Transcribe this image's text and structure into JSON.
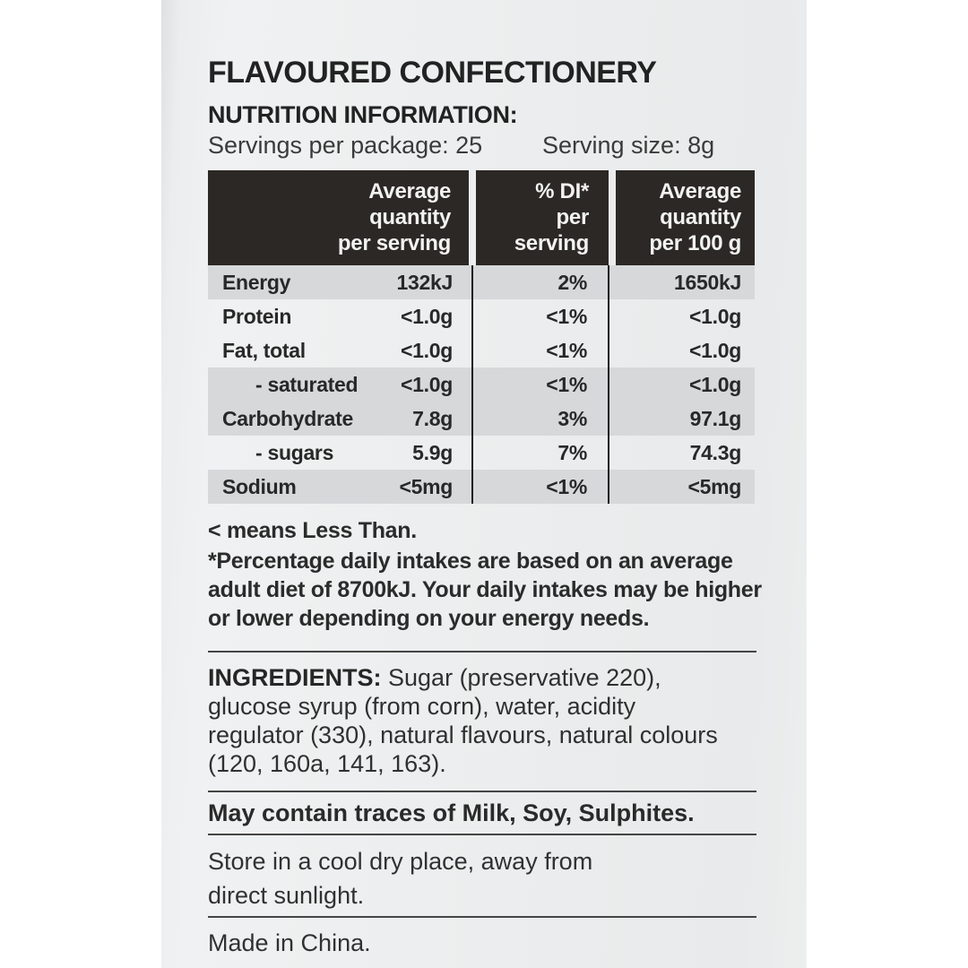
{
  "product": {
    "title": "FLAVOURED CONFECTIONERY"
  },
  "nutrition": {
    "heading": "NUTRITION INFORMATION:",
    "servings_per_package": "Servings per package: 25",
    "serving_size": "Serving size: 8g",
    "table": {
      "columns": [
        "Average\nquantity\nper serving",
        "% DI*\nper serving",
        "Average\nquantity\nper 100 g"
      ],
      "rows": [
        {
          "name": "Energy",
          "per_serving": "132kJ",
          "di": "2%",
          "per_100g": "1650kJ",
          "shaded": true,
          "indent": false
        },
        {
          "name": "Protein",
          "per_serving": "<1.0g",
          "di": "<1%",
          "per_100g": "<1.0g",
          "shaded": false,
          "indent": false
        },
        {
          "name": "Fat, total",
          "per_serving": "<1.0g",
          "di": "<1%",
          "per_100g": "<1.0g",
          "shaded": false,
          "indent": false
        },
        {
          "name": "- saturated",
          "per_serving": "<1.0g",
          "di": "<1%",
          "per_100g": "<1.0g",
          "shaded": true,
          "indent": true
        },
        {
          "name": "Carbohydrate",
          "per_serving": "7.8g",
          "di": "3%",
          "per_100g": "97.1g",
          "shaded": true,
          "indent": false
        },
        {
          "name": "- sugars",
          "per_serving": "5.9g",
          "di": "7%",
          "per_100g": "74.3g",
          "shaded": false,
          "indent": true
        },
        {
          "name": "Sodium",
          "per_serving": "<5mg",
          "di": "<1%",
          "per_100g": "<5mg",
          "shaded": true,
          "indent": false
        }
      ]
    },
    "less_than_note": "< means Less Than.",
    "daily_intake_note": "*Percentage daily intakes are based on an average\nadult diet of 8700kJ. Your daily intakes may be higher\nor lower depending on your energy needs."
  },
  "ingredients": {
    "label": "INGREDIENTS:",
    "text": " Sugar (preservative 220),\nglucose syrup (from corn), water, acidity\nregulator (330), natural flavours, natural colours\n(120, 160a, 141, 163)."
  },
  "allergen_statement": "May contain traces of Milk, Soy, Sulphites.",
  "storage_instructions": "Store in a cool dry place, away from\ndirect sunlight.",
  "origin_statement": "Made in China.",
  "colors": {
    "package_bg": "#ebedee",
    "header_bg": "#2b2825",
    "header_text": "#f2f2f0",
    "row_shade": "#d7d8da",
    "text": "#262626",
    "rule": "#454545"
  }
}
